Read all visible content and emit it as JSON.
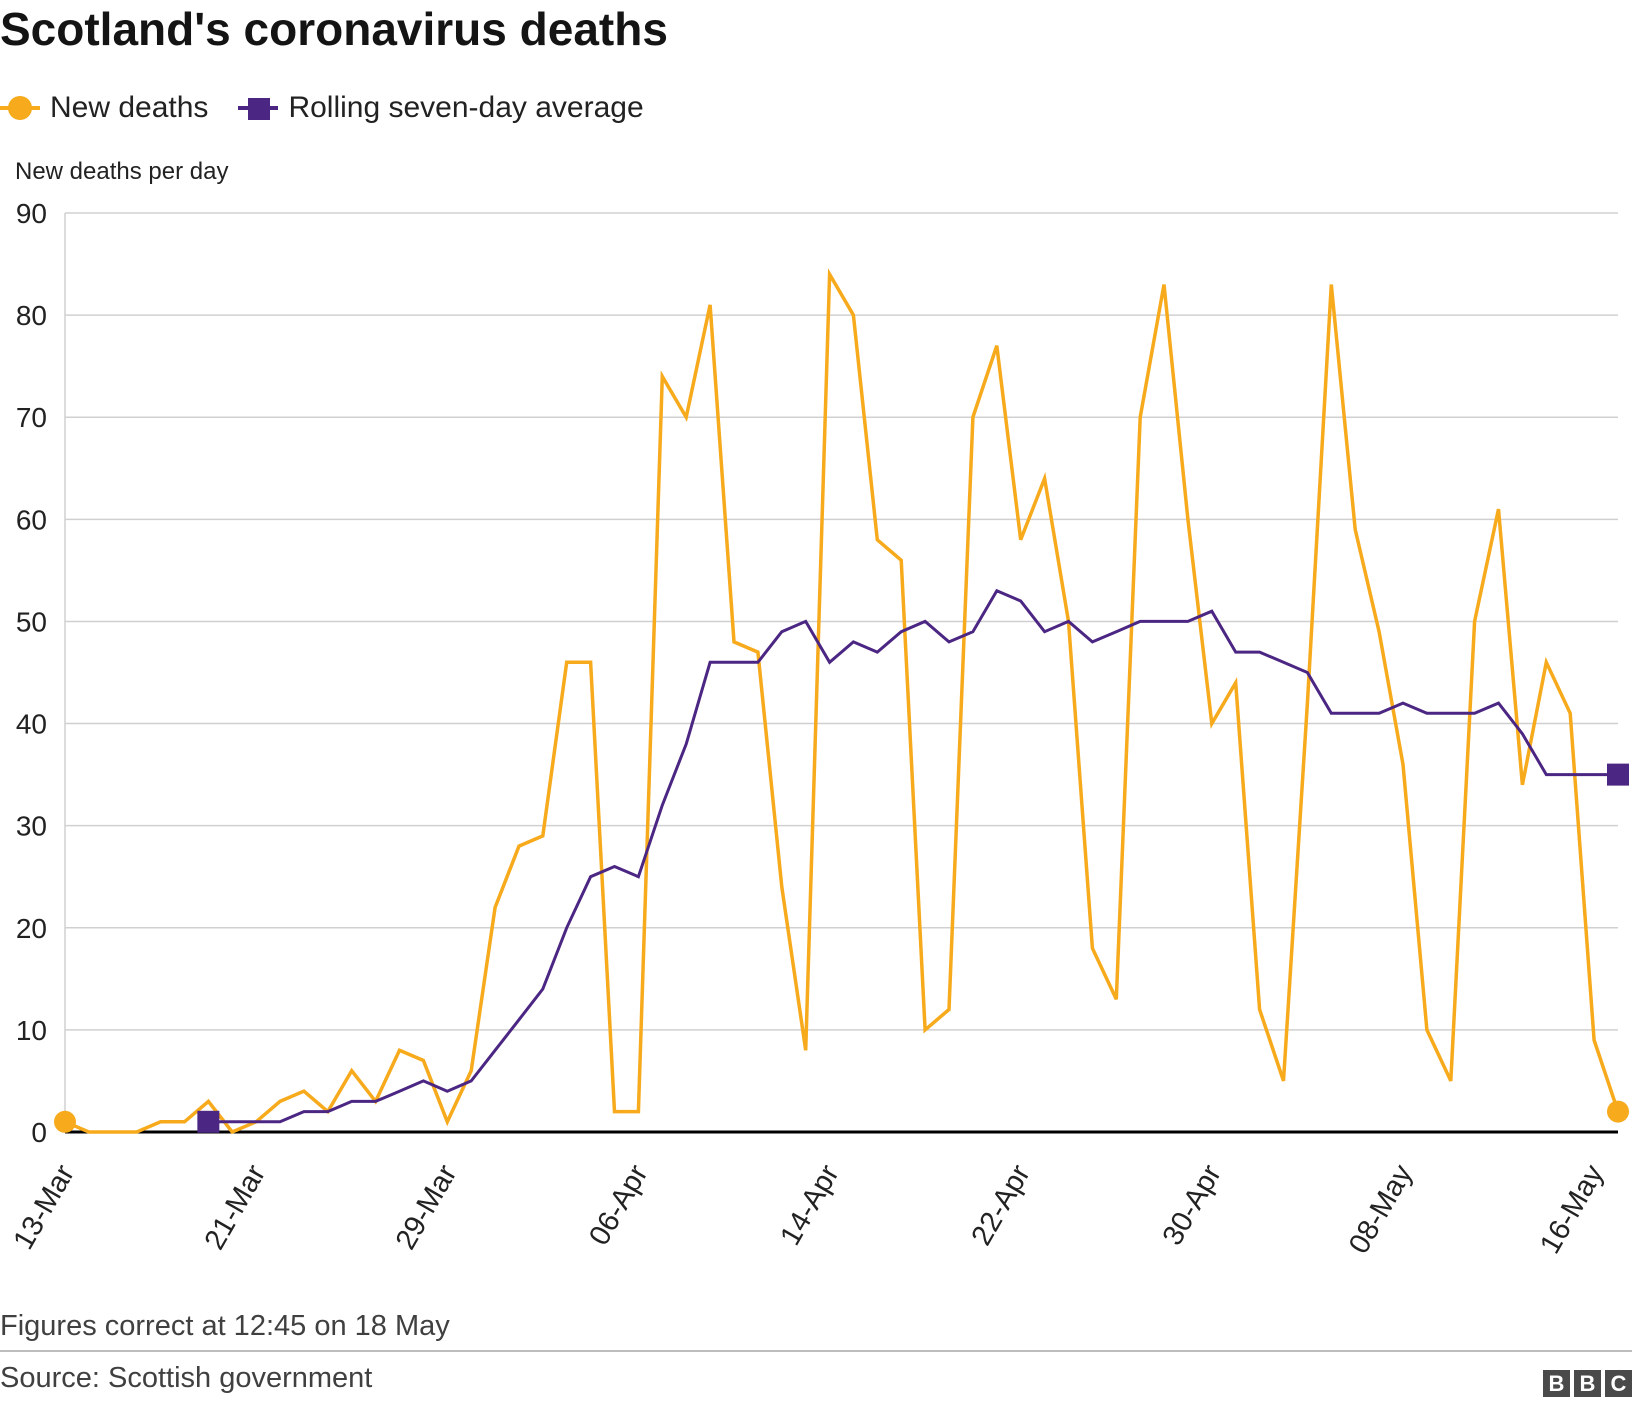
{
  "title": "Scotland's coronavirus deaths",
  "legend": {
    "new_deaths": "New deaths",
    "rolling_avg": "Rolling seven-day average"
  },
  "footnote": "Figures correct at 12:45 on 18 May",
  "source": "Source: Scottish government",
  "logo": {
    "b1": "B",
    "b2": "B",
    "c": "C"
  },
  "colors": {
    "new_deaths": "#f6aa1c",
    "rolling_avg": "#4b2683",
    "grid": "#d0d0d0",
    "axis": "#000000"
  },
  "chart_data": {
    "type": "line",
    "ylabel": "New deaths per day",
    "xlabel": "",
    "ylim": [
      0,
      90
    ],
    "yticks": [
      "0",
      "10",
      "20",
      "30",
      "40",
      "50",
      "60",
      "70",
      "80",
      "90"
    ],
    "xticks": [
      {
        "index": 0,
        "label": "13-Mar"
      },
      {
        "index": 8,
        "label": "21-Mar"
      },
      {
        "index": 16,
        "label": "29-Mar"
      },
      {
        "index": 24,
        "label": "06-Apr"
      },
      {
        "index": 32,
        "label": "14-Apr"
      },
      {
        "index": 40,
        "label": "22-Apr"
      },
      {
        "index": 48,
        "label": "30-Apr"
      },
      {
        "index": 56,
        "label": "08-May"
      },
      {
        "index": 64,
        "label": "16-May"
      }
    ],
    "x_start": "13-Mar",
    "x_end": "18-May",
    "series": [
      {
        "name": "New deaths",
        "start_index": 0,
        "values": [
          1,
          0,
          0,
          0,
          1,
          1,
          3,
          0,
          1,
          3,
          4,
          2,
          6,
          3,
          8,
          7,
          1,
          6,
          22,
          28,
          29,
          46,
          46,
          2,
          2,
          74,
          70,
          81,
          48,
          47,
          24,
          8,
          84,
          80,
          58,
          56,
          10,
          12,
          70,
          77,
          58,
          64,
          50,
          18,
          13,
          70,
          83,
          60,
          40,
          44,
          12,
          5,
          42,
          83,
          59,
          49,
          36,
          10,
          5,
          50,
          61,
          34,
          46,
          41,
          9,
          2
        ]
      },
      {
        "name": "Rolling seven-day average",
        "start_index": 6,
        "values": [
          1,
          1,
          1,
          1,
          2,
          2,
          3,
          3,
          4,
          5,
          4,
          5,
          8,
          11,
          14,
          20,
          25,
          26,
          25,
          32,
          38,
          46,
          46,
          46,
          49,
          50,
          46,
          48,
          47,
          49,
          50,
          48,
          49,
          53,
          52,
          49,
          50,
          48,
          49,
          50,
          50,
          50,
          51,
          47,
          47,
          46,
          45,
          41,
          41,
          41,
          42,
          41,
          41,
          41,
          42,
          39,
          35,
          35,
          35,
          35
        ]
      }
    ]
  }
}
